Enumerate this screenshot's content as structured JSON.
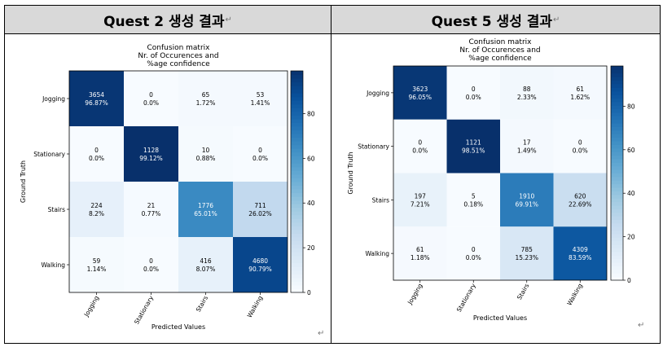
{
  "document": {
    "left_header": "Quest 2 생성 결과",
    "right_header": "Quest 5 생성 결과",
    "paragraph_mark": "↵"
  },
  "chart_data": [
    {
      "type": "heatmap",
      "title": "Confusion matrix\nNr. of Occurences and\n%age confidence",
      "xlabel": "Predicted Values",
      "ylabel": "Ground Truth",
      "x_categories": [
        "Jogging",
        "Stationary",
        "Stairs",
        "Walking"
      ],
      "y_categories": [
        "Jogging",
        "Stationary",
        "Stairs",
        "Walking"
      ],
      "counts": [
        [
          3654,
          0,
          65,
          53
        ],
        [
          0,
          1128,
          10,
          0
        ],
        [
          224,
          21,
          1776,
          711
        ],
        [
          59,
          0,
          416,
          4680
        ]
      ],
      "percent_labels": [
        [
          "96.87%",
          "0.0%",
          "1.72%",
          "1.41%"
        ],
        [
          "0.0%",
          "99.12%",
          "0.88%",
          "0.0%"
        ],
        [
          "8.2%",
          "0.77%",
          "65.01%",
          "26.02%"
        ],
        [
          "1.14%",
          "0.0%",
          "8.07%",
          "90.79%"
        ]
      ],
      "percent": [
        [
          96.87,
          0.0,
          1.72,
          1.41
        ],
        [
          0.0,
          99.12,
          0.88,
          0.0
        ],
        [
          8.2,
          0.77,
          65.01,
          26.02
        ],
        [
          1.14,
          0.0,
          8.07,
          90.79
        ]
      ],
      "colorbar": {
        "range": [
          0,
          99.12
        ],
        "ticks": [
          0,
          20,
          40,
          60,
          80
        ],
        "colormap": "Blues"
      }
    },
    {
      "type": "heatmap",
      "title": "Confusion matrix\nNr. of Occurences and\n%age confidence",
      "xlabel": "Predicted Values",
      "ylabel": "Ground Truth",
      "x_categories": [
        "Jogging",
        "Stationary",
        "Stairs",
        "Walking"
      ],
      "y_categories": [
        "Jogging",
        "Stationary",
        "Stairs",
        "Walking"
      ],
      "counts": [
        [
          3623,
          0,
          88,
          61
        ],
        [
          0,
          1121,
          17,
          0
        ],
        [
          197,
          5,
          1910,
          620
        ],
        [
          61,
          0,
          785,
          4309
        ]
      ],
      "percent_labels": [
        [
          "96.05%",
          "0.0%",
          "2.33%",
          "1.62%"
        ],
        [
          "0.0%",
          "98.51%",
          "1.49%",
          "0.0%"
        ],
        [
          "7.21%",
          "0.18%",
          "69.91%",
          "22.69%"
        ],
        [
          "1.18%",
          "0.0%",
          "15.23%",
          "83.59%"
        ]
      ],
      "percent": [
        [
          96.05,
          0.0,
          2.33,
          1.62
        ],
        [
          0.0,
          98.51,
          1.49,
          0.0
        ],
        [
          7.21,
          0.18,
          69.91,
          22.69
        ],
        [
          1.18,
          0.0,
          15.23,
          83.59
        ]
      ],
      "colorbar": {
        "range": [
          0,
          98.51
        ],
        "ticks": [
          0,
          20,
          40,
          60,
          80
        ],
        "colormap": "Blues"
      }
    }
  ]
}
